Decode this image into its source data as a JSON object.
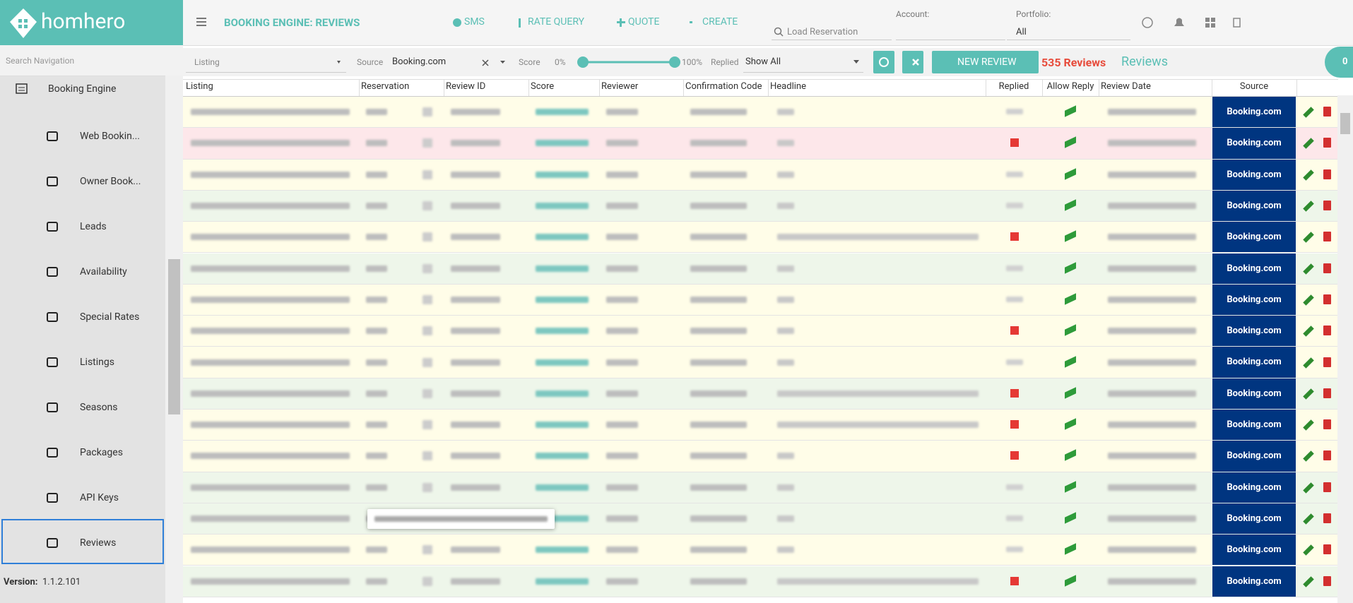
{
  "header": {
    "logo": "homhero",
    "page_title": "BOOKING ENGINE: REVIEWS",
    "actions": [
      "SMS",
      "RATE QUERY",
      "QUOTE",
      "CREATE"
    ],
    "search_placeholder": "Load Reservation",
    "account_label": "Account:",
    "portfolio_label": "Portfolio:",
    "portfolio_value": "All"
  },
  "sidebar": {
    "search_placeholder": "Search Navigation",
    "section": "Booking Engine",
    "items": [
      "Web Bookin...",
      "Owner Book...",
      "Leads",
      "Availability",
      "Special Rates",
      "Listings",
      "Seasons",
      "Packages",
      "API Keys",
      "Reviews"
    ],
    "version_label": "Version:",
    "version": "1.1.2.101"
  },
  "filters": {
    "listing_placeholder": "Listing",
    "source_label": "Source",
    "source_value": "Booking.com",
    "score_label": "Score",
    "score_min": "0%",
    "score_max": "100%",
    "replied_label": "Replied",
    "replied_value": "Show All",
    "new_review": "NEW REVIEW",
    "count": "535 Reviews",
    "tab": "Reviews",
    "badge": "0"
  },
  "table": {
    "columns": [
      "Listing",
      "Reservation",
      "Review ID",
      "Score",
      "Reviewer",
      "Confirmation Code",
      "Headline",
      "Replied",
      "Allow Reply",
      "Review Date",
      "Source"
    ],
    "rows": [
      {
        "source": "Booking.com",
        "replied": false,
        "headline": false,
        "tint": "#fffde8"
      },
      {
        "source": "Booking.com",
        "replied": true,
        "headline": false,
        "tint": "#fde7ea"
      },
      {
        "source": "Booking.com",
        "replied": false,
        "headline": false,
        "tint": "#fffde8"
      },
      {
        "source": "Booking.com",
        "replied": false,
        "headline": false,
        "tint": "#eef6ea"
      },
      {
        "source": "Booking.com",
        "replied": true,
        "headline": true,
        "tint": "#fffde8"
      },
      {
        "source": "Booking.com",
        "replied": false,
        "headline": false,
        "tint": "#eef6ea"
      },
      {
        "source": "Booking.com",
        "replied": false,
        "headline": false,
        "tint": "#fffde8"
      },
      {
        "source": "Booking.com",
        "replied": true,
        "headline": false,
        "tint": "#fffde8"
      },
      {
        "source": "Booking.com",
        "replied": false,
        "headline": false,
        "tint": "#fffde8"
      },
      {
        "source": "Booking.com",
        "replied": true,
        "headline": true,
        "tint": "#eef6ea"
      },
      {
        "source": "Booking.com",
        "replied": true,
        "headline": true,
        "tint": "#fffde8"
      },
      {
        "source": "Booking.com",
        "replied": true,
        "headline": false,
        "tint": "#fffde8"
      },
      {
        "source": "Booking.com",
        "replied": false,
        "headline": false,
        "tint": "#eef6ea"
      },
      {
        "source": "Booking.com",
        "replied": false,
        "headline": false,
        "tint": "#eef6ea"
      },
      {
        "source": "Booking.com",
        "replied": false,
        "headline": false,
        "tint": "#fffde8"
      },
      {
        "source": "Booking.com",
        "replied": true,
        "headline": true,
        "tint": "#eef6ea"
      }
    ]
  }
}
